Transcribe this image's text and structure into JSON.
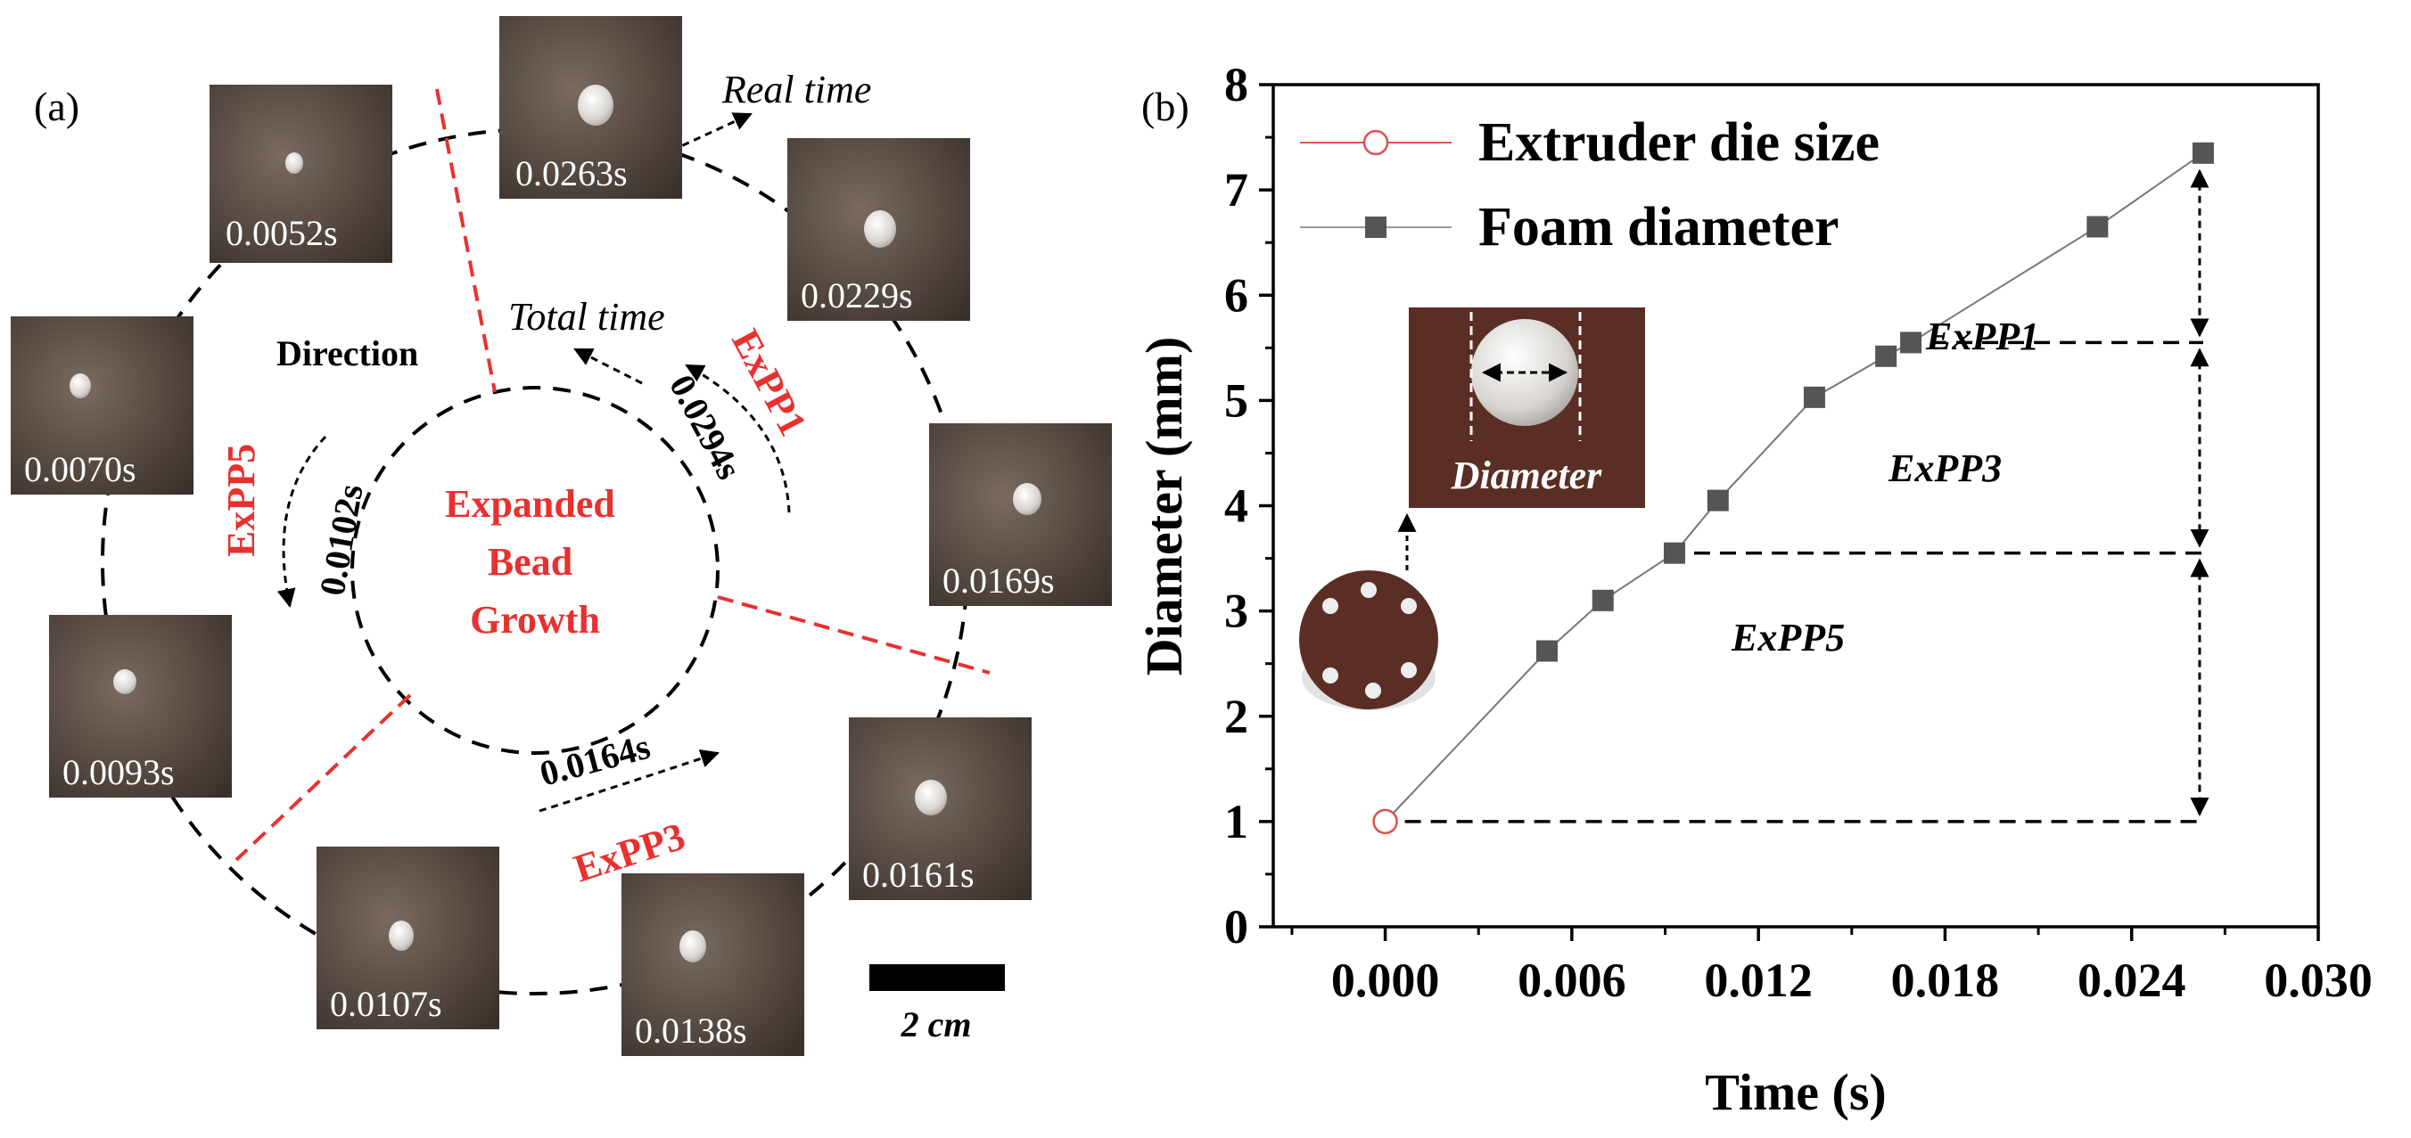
{
  "panel_a": {
    "label": "(a)",
    "center_title": [
      "Expanded",
      "Bead",
      "Growth"
    ],
    "direction_label": "Direction",
    "real_time_label": "Real time",
    "total_time_label": "Total time",
    "scale_bar_label": "2 cm",
    "segments": [
      {
        "name": "ExPP1",
        "total_time": "0.0294s"
      },
      {
        "name": "ExPP3",
        "total_time": "0.0164s"
      },
      {
        "name": "ExPP5",
        "total_time": "0.0102s"
      }
    ],
    "frames": [
      "0.0263s",
      "0.0229s",
      "0.0169s",
      "0.0161s",
      "0.0138s",
      "0.0107s",
      "0.0093s",
      "0.0070s",
      "0.0052s"
    ],
    "colors": {
      "accent": "#e8312f",
      "photo_bg": "#5a4a40",
      "bead": "#e9e6e1"
    }
  },
  "chart_data": {
    "type": "line",
    "panel_label": "(b)",
    "xlabel": "Time (s)",
    "ylabel": "Diameter (mm)",
    "xlim": [
      -0.0036,
      0.03
    ],
    "ylim": [
      0,
      8
    ],
    "xticks": [
      "0.000",
      "0.006",
      "0.012",
      "0.018",
      "0.024",
      "0.030"
    ],
    "yticks": [
      "0",
      "1",
      "2",
      "3",
      "4",
      "5",
      "6",
      "7",
      "8"
    ],
    "legend_position": "top-left",
    "series": [
      {
        "name": "Extruder die size",
        "marker": "open-circle",
        "color": "#d9534f",
        "x": [
          0.0
        ],
        "y": [
          1.0
        ]
      },
      {
        "name": "Foam diameter",
        "marker": "filled-square",
        "color": "#555555",
        "x": [
          0.0052,
          0.007,
          0.0093,
          0.0107,
          0.0138,
          0.0161,
          0.0169,
          0.0229,
          0.0263
        ],
        "y": [
          2.62,
          3.1,
          3.55,
          4.05,
          5.03,
          5.42,
          5.55,
          6.65,
          7.35
        ]
      }
    ],
    "annotations": {
      "ExPP1": "ExPP1",
      "ExPP3": "ExPP3",
      "ExPP5": "ExPP5",
      "inset_label": "Diameter"
    }
  }
}
